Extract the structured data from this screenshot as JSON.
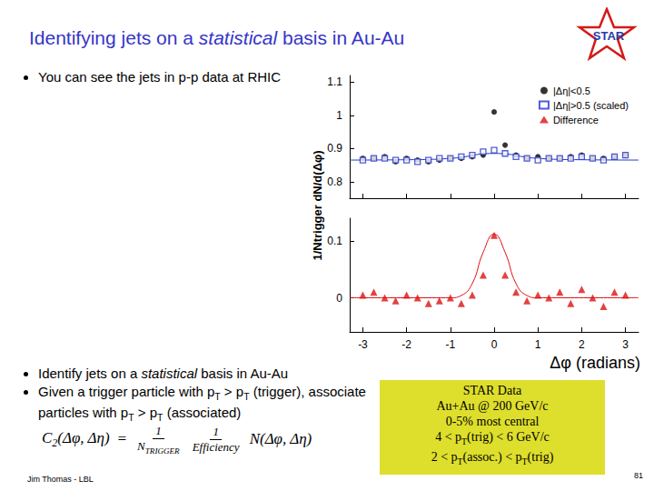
{
  "slide": {
    "title": [
      "Identifying jets on a ",
      {
        "i": "statistical"
      },
      " basis in Au-Au"
    ],
    "logo": "STAR",
    "bullets_top": [
      [
        "You can see the jets in p-p data at RHIC"
      ]
    ],
    "bullets_bottom": [
      [
        "Identify jets on a ",
        {
          "i": "statistical"
        },
        " basis in Au-Au"
      ],
      [
        "Given a trigger particle with p",
        {
          "sub": "T"
        },
        " > p",
        {
          "sub": "T"
        },
        " (trigger), associate particles with  p",
        {
          "sub": "T"
        },
        " > p",
        {
          "sub": "T"
        },
        " (associated)"
      ]
    ],
    "formula": {
      "lhs": [
        "C",
        {
          "sub": "2"
        },
        "(Δφ, Δη)"
      ],
      "eq": "=",
      "fractions": [
        {
          "num": [
            "1"
          ],
          "den": [
            "N",
            {
              "sub": "TRIGGER"
            }
          ]
        },
        {
          "num": [
            "1"
          ],
          "den": [
            "Efficiency"
          ]
        }
      ],
      "rhs": [
        "N(Δφ, Δη)"
      ]
    },
    "box": [
      [
        "STAR Data"
      ],
      [
        "Au+Au @ 200 GeV/c"
      ],
      [
        "0-5%  most central"
      ],
      [
        "4 < p",
        {
          "sub": "T"
        },
        "(trig) < 6 GeV/c"
      ],
      [
        "2 < p",
        {
          "sub": "T"
        },
        "(assoc.) < p",
        {
          "sub": "T"
        },
        "(trig)"
      ]
    ],
    "footer": "Jim Thomas - LBL",
    "page": "81"
  },
  "chart_data": [
    {
      "type": "scatter",
      "ylabel": "1/Ntrigger dN/d(Δφ)",
      "x": [
        -3,
        -2.75,
        -2.5,
        -2.25,
        -2,
        -1.75,
        -1.5,
        -1.25,
        -1,
        -0.75,
        -0.5,
        -0.25,
        0,
        0.25,
        0.5,
        0.75,
        1,
        1.25,
        1.5,
        1.75,
        2,
        2.25,
        2.5,
        2.75,
        3
      ],
      "series": [
        {
          "name": "|Δη|<0.5",
          "color": "#000000",
          "marker": "circle",
          "values": [
            0.87,
            0.87,
            0.875,
            0.86,
            0.87,
            0.865,
            0.86,
            0.865,
            0.87,
            0.87,
            0.875,
            0.88,
            1.01,
            0.91,
            0.88,
            0.87,
            0.875,
            0.87,
            0.87,
            0.875,
            0.88,
            0.87,
            0.87,
            0.875,
            0.88
          ]
        },
        {
          "name": "|Δη|>0.5 (scaled)",
          "color": "#2233cc",
          "marker": "square_open",
          "values": [
            0.865,
            0.87,
            0.87,
            0.865,
            0.865,
            0.86,
            0.865,
            0.87,
            0.87,
            0.875,
            0.88,
            0.89,
            0.895,
            0.885,
            0.875,
            0.87,
            0.865,
            0.87,
            0.87,
            0.87,
            0.875,
            0.87,
            0.865,
            0.875,
            0.88
          ]
        },
        {
          "type": "line",
          "color": "#2233cc",
          "marker": "none",
          "line_style": "solid",
          "x": [
            -3.3,
            -2,
            -1,
            0,
            1,
            2,
            3.3
          ],
          "values": [
            0.865,
            0.866,
            0.87,
            0.885,
            0.87,
            0.866,
            0.865
          ]
        }
      ],
      "xlim": [
        -3.3,
        3.3
      ],
      "xticks": [
        -3,
        -2,
        -1,
        0,
        1,
        2,
        3
      ],
      "ylim": [
        0.75,
        1.12
      ],
      "yticks": [
        0.8,
        0.9,
        1,
        1.1
      ],
      "tick_labels": "y",
      "grid": false,
      "legend": "upper right"
    },
    {
      "type": "scatter",
      "xlabel": "Δφ (radians)",
      "x": [
        -3,
        -2.75,
        -2.5,
        -2.25,
        -2,
        -1.75,
        -1.5,
        -1.25,
        -1,
        -0.75,
        -0.5,
        -0.25,
        0,
        0.25,
        0.5,
        0.75,
        1,
        1.25,
        1.5,
        1.75,
        2,
        2.25,
        2.5,
        2.75,
        3
      ],
      "series": [
        {
          "name": "Difference",
          "color": "#dd1111",
          "marker": "triangle",
          "values": [
            0.005,
            0.01,
            0,
            -0.005,
            0.005,
            0,
            -0.01,
            -0.005,
            0,
            -0.01,
            0.005,
            0.04,
            0.11,
            0.04,
            0.01,
            -0.005,
            0.005,
            0,
            0.01,
            -0.01,
            0.015,
            0,
            -0.015,
            0.01,
            0.005
          ]
        },
        {
          "type": "line",
          "color": "#dd1111",
          "marker": "none",
          "line_style": "solid",
          "x": [
            -3.3,
            -1,
            -0.75,
            -0.5,
            -0.25,
            0,
            0.25,
            0.5,
            0.75,
            1,
            3.3
          ],
          "values": [
            0,
            0,
            0.004,
            0.025,
            0.08,
            0.112,
            0.08,
            0.025,
            0.004,
            0,
            0
          ]
        }
      ],
      "xlim": [
        -3.3,
        3.3
      ],
      "xticks": [
        -3,
        -2,
        -1,
        0,
        1,
        2,
        3
      ],
      "ylim": [
        -0.06,
        0.14
      ],
      "yticks": [
        0,
        0.1
      ],
      "tick_labels": true,
      "grid": false
    }
  ]
}
